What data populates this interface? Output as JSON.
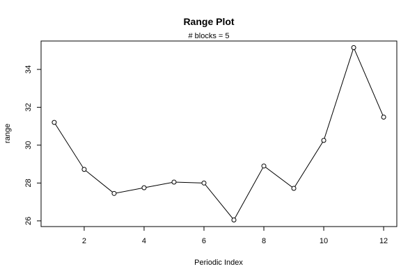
{
  "chart_data": {
    "type": "line",
    "title": "Range Plot",
    "subtitle": "# blocks =  5",
    "xlabel": "Periodic Index",
    "ylabel": "range",
    "x": [
      1,
      2,
      3,
      4,
      5,
      6,
      7,
      8,
      9,
      10,
      11,
      12
    ],
    "series": [
      {
        "values": [
          31.2,
          28.72,
          27.45,
          27.75,
          28.05,
          28.0,
          26.05,
          28.9,
          27.72,
          30.25,
          35.15,
          31.48
        ]
      }
    ],
    "xlim": [
      0.56,
      12.44
    ],
    "ylim": [
      25.7,
      35.5
    ],
    "xticks": [
      2,
      4,
      6,
      8,
      10,
      12
    ],
    "yticks": [
      26,
      28,
      30,
      32,
      34
    ],
    "marker": "open-circle",
    "line_color": "#000000",
    "grid": false,
    "legend": "none"
  }
}
